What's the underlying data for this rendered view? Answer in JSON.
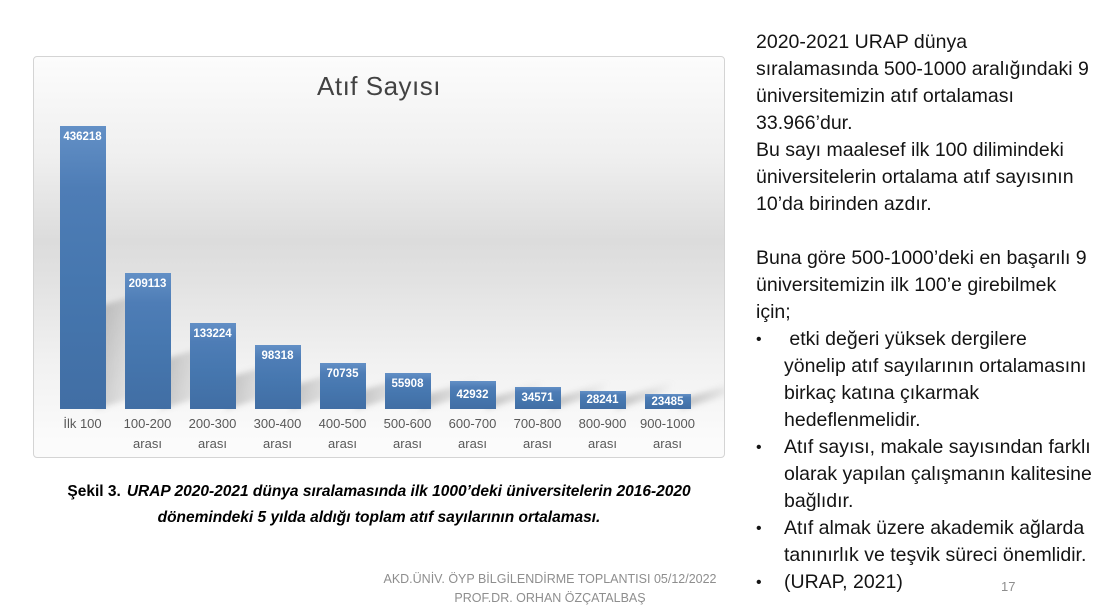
{
  "chart_data": {
    "type": "bar",
    "title": "Atıf Sayısı",
    "categories": [
      "İlk 100",
      "100-200 arası",
      "200-300 arası",
      "300-400 arası",
      "400-500 arası",
      "500-600 arası",
      "600-700 arası",
      "700-800 arası",
      "800-900 arası",
      "900-1000 arası"
    ],
    "values": [
      436218,
      209113,
      133224,
      98318,
      70735,
      55908,
      42932,
      34571,
      28241,
      23485
    ],
    "xlabel": "",
    "ylabel": "",
    "ylim": [
      0,
      450000
    ],
    "gridlines": false,
    "legend": "none",
    "value_labels": "inside-end, white bold",
    "bar_color": "#4F81BD",
    "axis_label_color": "#595959",
    "plot_background": "vertical gray gradient"
  },
  "caption": {
    "label": "Şekil 3.",
    "text": "URAP 2020-2021 dünya sıralamasında ilk 1000’deki üniversitelerin 2016-2020 dönemindeki 5 yılda aldığı toplam atıf sayılarının ortalaması."
  },
  "commentary": {
    "paragraphs": [
      "2020-2021 URAP dünya sıralamasında 500-1000 aralığındaki 9 üniversitemizin atıf ortalaması 33.966’dur.",
      "Bu sayı maalesef ilk 100 dilimindeki üniversitelerin ortalama atıf sayısının 10’da birinden azdır.",
      "Buna göre 500-1000’deki en başarılı 9 üniversitemizin ilk 100’e girebilmek için;"
    ],
    "bullet_glyph": "•",
    "bullets": [
      " etki değeri yüksek dergilere yönelip atıf sayılarının ortalamasını birkaç katına çıkarmak hedeflenmelidir.",
      "Atıf sayısı, makale sayısından farklı olarak yapılan çalışmanın kalitesine bağlıdır.",
      "Atıf almak üzere akademik ağlarda tanınırlık ve teşvik süreci önemlidir.",
      "(URAP, 2021)"
    ]
  },
  "footer": {
    "line1": "AKD.ÜNİV. ÖYP BİLGİLENDİRME TOPLANTISI 05/12/2022",
    "line2": "PROF.DR. ORHAN ÖZÇATALBAŞ",
    "page_number": "17"
  }
}
